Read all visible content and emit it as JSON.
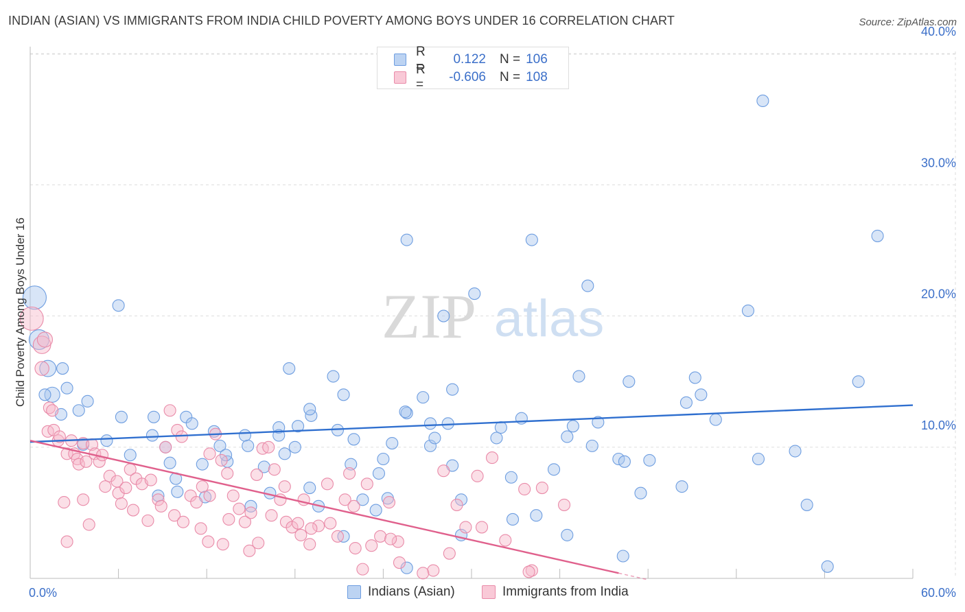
{
  "header": {
    "title": "INDIAN (ASIAN) VS IMMIGRANTS FROM INDIA CHILD POVERTY AMONG BOYS UNDER 16 CORRELATION CHART",
    "source": "Source: ZipAtlas.com"
  },
  "watermark": {
    "zip": "ZIP",
    "atlas": "atlas"
  },
  "legend": {
    "rows": [
      {
        "r_label": "R =",
        "r_value": "0.122",
        "n_label": "N =",
        "n_value": "106"
      },
      {
        "r_label": "R =",
        "r_value": "-0.606",
        "n_label": "N =",
        "n_value": "108"
      }
    ]
  },
  "bottom_legend": {
    "series1": "Indians (Asian)",
    "series2": "Immigrants from India"
  },
  "colors": {
    "blue_fill": "#a9c6ee",
    "blue_stroke": "#6d9de0",
    "blue_line": "#2f6fcf",
    "pink_fill": "#f6b8ca",
    "pink_stroke": "#e98aa8",
    "pink_line": "#e0608c",
    "grid": "#dddddd",
    "tick_text": "#3b6fc9"
  },
  "chart_data": {
    "type": "scatter",
    "title": "INDIAN (ASIAN) VS IMMIGRANTS FROM INDIA CHILD POVERTY AMONG BOYS UNDER 16 CORRELATION CHART",
    "xlabel": "",
    "ylabel": "Child Poverty Among Boys Under 16",
    "xlim": [
      0,
      60
    ],
    "ylim": [
      0,
      41
    ],
    "x_tick_labels": [
      "0.0%",
      "60.0%"
    ],
    "y_ticks": [
      10,
      20,
      30,
      40
    ],
    "y_tick_labels": [
      "10.0%",
      "20.0%",
      "30.0%",
      "40.0%"
    ],
    "grid": true,
    "series": [
      {
        "name": "Indians (Asian)",
        "r": 0.122,
        "n": 106,
        "trend": {
          "x": [
            0,
            60
          ],
          "y": [
            10.4,
            13.2
          ]
        },
        "points": [
          [
            0.3,
            21.4,
            2.0
          ],
          [
            0.6,
            18.2,
            1.7
          ],
          [
            1.2,
            16.0,
            1.4
          ],
          [
            1.5,
            14.0,
            1.3
          ],
          [
            2.2,
            16.0,
            1.0
          ],
          [
            1.0,
            14.0,
            1.0
          ],
          [
            2.5,
            14.5,
            1.0
          ],
          [
            2.1,
            12.5,
            1.0
          ],
          [
            3.3,
            12.8,
            1.0
          ],
          [
            3.6,
            10.2,
            1.0
          ],
          [
            3.9,
            13.5,
            1.0
          ],
          [
            5.2,
            10.5,
            1.0
          ],
          [
            6.0,
            20.8,
            1.0
          ],
          [
            6.8,
            9.4,
            1.0
          ],
          [
            6.2,
            12.3,
            1.0
          ],
          [
            8.3,
            10.9,
            1.0
          ],
          [
            8.4,
            12.3,
            1.0
          ],
          [
            9.2,
            10.0,
            1.0
          ],
          [
            9.9,
            7.6,
            1.0
          ],
          [
            9.5,
            8.8,
            1.0
          ],
          [
            10.0,
            6.6,
            1.0
          ],
          [
            10.6,
            12.3,
            1.0
          ],
          [
            11.0,
            11.8,
            1.0
          ],
          [
            11.7,
            8.7,
            1.0
          ],
          [
            12.5,
            11.2,
            1.0
          ],
          [
            12.9,
            10.1,
            1.0
          ],
          [
            13.4,
            8.9,
            1.0
          ],
          [
            13.3,
            9.4,
            1.0
          ],
          [
            14.6,
            10.9,
            1.0
          ],
          [
            14.8,
            10.1,
            1.0
          ],
          [
            15.9,
            8.5,
            1.0
          ],
          [
            16.3,
            6.5,
            1.0
          ],
          [
            15.0,
            5.5,
            1.0
          ],
          [
            16.9,
            11.5,
            1.0
          ],
          [
            17.3,
            9.5,
            1.0
          ],
          [
            16.9,
            10.9,
            1.0
          ],
          [
            18.0,
            10.0,
            1.0
          ],
          [
            17.6,
            16.0,
            1.0
          ],
          [
            18.2,
            11.6,
            1.0
          ],
          [
            19.0,
            6.9,
            1.0
          ],
          [
            19.1,
            12.4,
            1.0
          ],
          [
            19.0,
            12.9,
            1.0
          ],
          [
            19.6,
            5.5,
            1.0
          ],
          [
            20.6,
            15.4,
            1.0
          ],
          [
            20.9,
            11.3,
            1.0
          ],
          [
            21.3,
            14.0,
            1.0
          ],
          [
            22.0,
            10.6,
            1.0
          ],
          [
            21.3,
            3.2,
            1.0
          ],
          [
            22.6,
            6.0,
            1.0
          ],
          [
            23.5,
            5.2,
            1.0
          ],
          [
            23.7,
            8.0,
            1.0
          ],
          [
            25.6,
            12.6,
            1.0
          ],
          [
            24.0,
            9.1,
            1.0
          ],
          [
            24.6,
            10.3,
            1.0
          ],
          [
            24.3,
            6.1,
            1.0
          ],
          [
            25.6,
            25.8,
            1.0
          ],
          [
            25.5,
            12.7,
            1.0
          ],
          [
            27.2,
            11.8,
            1.0
          ],
          [
            27.2,
            10.1,
            1.0
          ],
          [
            26.7,
            13.8,
            1.0
          ],
          [
            27.5,
            10.7,
            1.0
          ],
          [
            28.7,
            14.4,
            1.0
          ],
          [
            28.4,
            11.8,
            1.0
          ],
          [
            28.1,
            20.0,
            1.0
          ],
          [
            29.3,
            6.0,
            1.0
          ],
          [
            29.3,
            3.3,
            1.0
          ],
          [
            30.2,
            21.7,
            1.0
          ],
          [
            31.7,
            10.7,
            1.0
          ],
          [
            32.0,
            11.5,
            1.0
          ],
          [
            32.7,
            7.7,
            1.0
          ],
          [
            34.1,
            25.8,
            1.0
          ],
          [
            33.4,
            12.2,
            1.0
          ],
          [
            34.4,
            4.8,
            1.0
          ],
          [
            35.6,
            8.3,
            1.0
          ],
          [
            36.5,
            10.8,
            1.0
          ],
          [
            37.3,
            15.4,
            1.0
          ],
          [
            36.9,
            11.6,
            1.0
          ],
          [
            37.9,
            22.3,
            1.0
          ],
          [
            38.6,
            11.9,
            1.0
          ],
          [
            38.2,
            10.1,
            1.0
          ],
          [
            40.7,
            15.0,
            1.0
          ],
          [
            40.0,
            9.1,
            1.0
          ],
          [
            40.4,
            8.9,
            1.0
          ],
          [
            42.1,
            9.0,
            1.0
          ],
          [
            44.6,
            13.4,
            1.0
          ],
          [
            44.3,
            7.0,
            1.0
          ],
          [
            45.6,
            14.0,
            1.0
          ],
          [
            45.2,
            15.3,
            1.0
          ],
          [
            46.6,
            12.1,
            1.0
          ],
          [
            48.8,
            20.4,
            1.0
          ],
          [
            49.5,
            9.1,
            1.0
          ],
          [
            49.8,
            36.4,
            1.0
          ],
          [
            52.0,
            9.7,
            1.0
          ],
          [
            52.8,
            5.6,
            1.0
          ],
          [
            56.3,
            15.0,
            1.0
          ],
          [
            57.6,
            26.1,
            1.0
          ],
          [
            54.2,
            0.9,
            1.0
          ],
          [
            40.3,
            1.7,
            1.0
          ],
          [
            36.5,
            3.3,
            1.0
          ],
          [
            32.8,
            4.5,
            1.0
          ],
          [
            25.6,
            0.8,
            1.0
          ],
          [
            11.9,
            6.2,
            1.0
          ],
          [
            41.5,
            6.5,
            1.0
          ],
          [
            28.7,
            8.6,
            1.0
          ],
          [
            21.8,
            8.7,
            1.0
          ],
          [
            8.7,
            6.3,
            1.0
          ]
        ]
      },
      {
        "name": "Immigrants from India",
        "r": -0.606,
        "n": 108,
        "trend": {
          "x": [
            0,
            40
          ],
          "y": [
            10.5,
            0.4
          ]
        },
        "points": [
          [
            0.1,
            19.8,
            2.0
          ],
          [
            0.8,
            17.8,
            1.5
          ],
          [
            1.0,
            18.2,
            1.3
          ],
          [
            0.8,
            16.0,
            1.2
          ],
          [
            1.3,
            13.0,
            1.0
          ],
          [
            1.5,
            12.8,
            1.0
          ],
          [
            1.2,
            11.2,
            1.0
          ],
          [
            1.6,
            11.3,
            1.0
          ],
          [
            1.9,
            10.5,
            1.0
          ],
          [
            2.0,
            10.8,
            1.0
          ],
          [
            2.5,
            9.5,
            1.0
          ],
          [
            2.8,
            10.5,
            1.0
          ],
          [
            3.0,
            9.5,
            1.0
          ],
          [
            3.2,
            9.1,
            1.0
          ],
          [
            3.6,
            10.3,
            1.0
          ],
          [
            3.3,
            8.7,
            1.0
          ],
          [
            3.8,
            8.9,
            1.0
          ],
          [
            4.2,
            10.2,
            1.0
          ],
          [
            4.4,
            9.5,
            1.0
          ],
          [
            4.7,
            8.9,
            1.0
          ],
          [
            4.9,
            9.4,
            1.0
          ],
          [
            5.4,
            7.8,
            1.0
          ],
          [
            5.1,
            7.0,
            1.0
          ],
          [
            5.9,
            7.4,
            1.0
          ],
          [
            6.0,
            6.5,
            1.0
          ],
          [
            6.5,
            6.9,
            1.0
          ],
          [
            6.8,
            8.3,
            1.0
          ],
          [
            7.2,
            7.6,
            1.0
          ],
          [
            7.6,
            7.2,
            1.0
          ],
          [
            8.2,
            7.5,
            1.0
          ],
          [
            8.7,
            6.0,
            1.0
          ],
          [
            8.9,
            5.5,
            1.0
          ],
          [
            9.2,
            10.0,
            1.0
          ],
          [
            9.5,
            12.8,
            1.0
          ],
          [
            10.0,
            11.3,
            1.0
          ],
          [
            10.3,
            10.8,
            1.0
          ],
          [
            10.9,
            6.3,
            1.0
          ],
          [
            11.3,
            5.8,
            1.0
          ],
          [
            11.7,
            7.0,
            1.0
          ],
          [
            12.2,
            9.5,
            1.0
          ],
          [
            12.6,
            11.0,
            1.0
          ],
          [
            13.0,
            9.0,
            1.0
          ],
          [
            13.4,
            8.0,
            1.0
          ],
          [
            13.8,
            6.3,
            1.0
          ],
          [
            14.2,
            5.3,
            1.0
          ],
          [
            14.6,
            4.3,
            1.0
          ],
          [
            15.0,
            5.0,
            1.0
          ],
          [
            15.4,
            7.9,
            1.0
          ],
          [
            15.8,
            9.9,
            1.0
          ],
          [
            16.2,
            10.0,
            1.0
          ],
          [
            16.6,
            8.3,
            1.0
          ],
          [
            17.0,
            6.0,
            1.0
          ],
          [
            17.4,
            4.3,
            1.0
          ],
          [
            17.8,
            3.9,
            1.0
          ],
          [
            18.2,
            4.2,
            1.0
          ],
          [
            18.6,
            6.0,
            1.0
          ],
          [
            19.0,
            2.6,
            1.0
          ],
          [
            19.6,
            4.0,
            1.0
          ],
          [
            20.2,
            7.2,
            1.0
          ],
          [
            20.9,
            3.2,
            1.0
          ],
          [
            21.4,
            6.0,
            1.0
          ],
          [
            22.0,
            5.5,
            1.0
          ],
          [
            22.6,
            0.7,
            1.0
          ],
          [
            23.2,
            2.5,
            1.0
          ],
          [
            23.8,
            3.2,
            1.0
          ],
          [
            24.4,
            5.8,
            1.0
          ],
          [
            25.0,
            2.8,
            1.0
          ],
          [
            27.4,
            0.6,
            1.0
          ],
          [
            28.1,
            8.2,
            1.0
          ],
          [
            29.0,
            5.6,
            1.0
          ],
          [
            29.6,
            3.9,
            1.0
          ],
          [
            30.4,
            7.8,
            1.0
          ],
          [
            33.6,
            6.8,
            1.0
          ],
          [
            34.8,
            6.9,
            1.0
          ],
          [
            36.3,
            5.6,
            1.0
          ],
          [
            34.1,
            0.6,
            1.0
          ],
          [
            2.3,
            5.8,
            1.0
          ],
          [
            3.6,
            6.0,
            1.0
          ],
          [
            7.0,
            5.2,
            1.0
          ],
          [
            8.0,
            4.4,
            1.0
          ],
          [
            9.8,
            4.8,
            1.0
          ],
          [
            10.4,
            4.3,
            1.0
          ],
          [
            11.6,
            3.8,
            1.0
          ],
          [
            12.1,
            2.8,
            1.0
          ],
          [
            13.1,
            2.6,
            1.0
          ],
          [
            13.5,
            4.5,
            1.0
          ],
          [
            14.9,
            2.1,
            1.0
          ],
          [
            15.5,
            2.7,
            1.0
          ],
          [
            16.4,
            4.8,
            1.0
          ],
          [
            18.4,
            3.3,
            1.0
          ],
          [
            19.1,
            3.8,
            1.0
          ],
          [
            20.4,
            4.2,
            1.0
          ],
          [
            22.1,
            2.3,
            1.0
          ],
          [
            22.9,
            7.2,
            1.0
          ],
          [
            24.5,
            3.0,
            1.0
          ],
          [
            25.1,
            1.2,
            1.0
          ],
          [
            26.7,
            0.4,
            1.0
          ],
          [
            31.4,
            9.2,
            1.0
          ],
          [
            32.3,
            2.9,
            1.0
          ],
          [
            33.9,
            0.5,
            1.0
          ],
          [
            28.5,
            1.9,
            1.0
          ],
          [
            30.7,
            3.9,
            1.0
          ],
          [
            21.7,
            8.0,
            1.0
          ],
          [
            17.3,
            7.0,
            1.0
          ],
          [
            12.2,
            6.3,
            1.0
          ],
          [
            6.2,
            5.7,
            1.0
          ],
          [
            4.0,
            4.1,
            1.0
          ],
          [
            2.5,
            2.8,
            1.0
          ]
        ]
      }
    ]
  }
}
